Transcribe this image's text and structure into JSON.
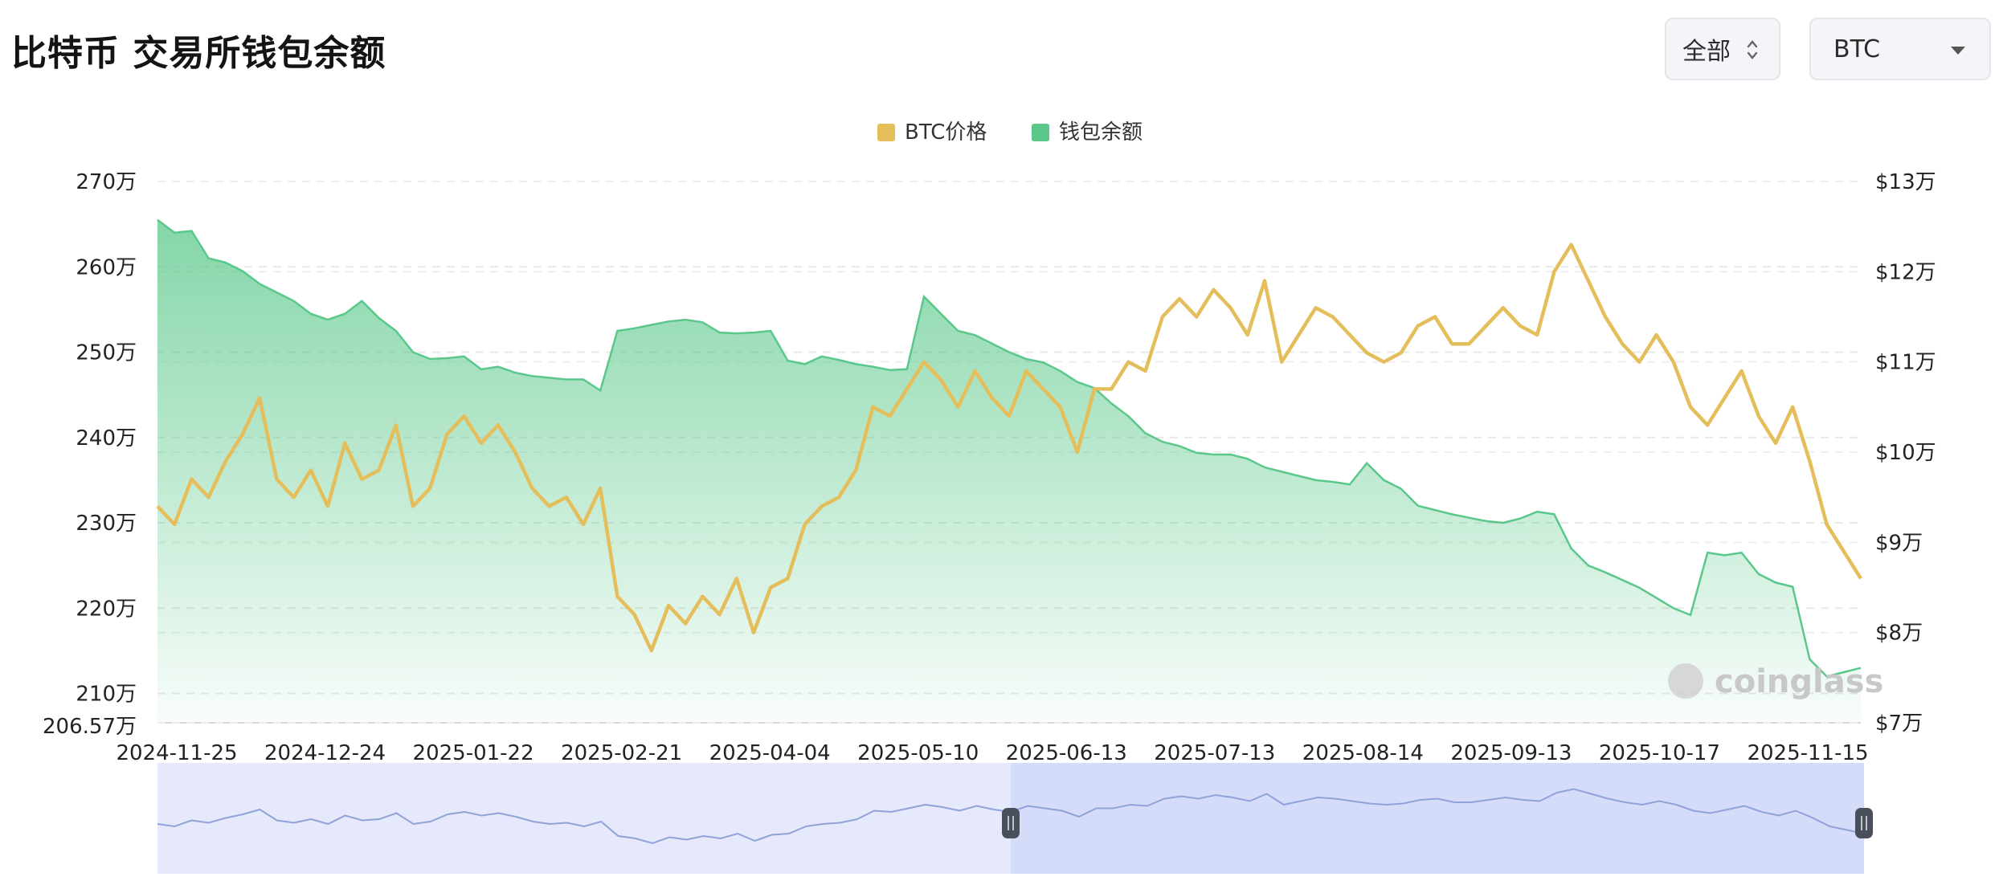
{
  "page": {
    "title": "比特币 交易所钱包余额",
    "range_select": {
      "value": "全部"
    },
    "coin_select": {
      "value": "BTC"
    },
    "watermark": "coinglass"
  },
  "colors": {
    "price": "#E5BE5C",
    "balance": "#5AC88A",
    "balance_fill_top": "#7ED3A0",
    "grid": "#e8e8e8",
    "navigator_fill": "#e6e9fb",
    "navigator_selected": "#d5dcfa",
    "navigator_line": "#8fa3d8",
    "handle": "#4a4f5c"
  },
  "chart_data": {
    "type": "area",
    "legend": [
      {
        "name": "BTC价格",
        "color": "#E5BE5C"
      },
      {
        "name": "钱包余额",
        "color": "#5AC88A"
      }
    ],
    "legend_position": "top-center",
    "grid": true,
    "x_ticks": [
      "2024-11-25",
      "2024-12-24",
      "2025-01-22",
      "2025-02-21",
      "2025-04-04",
      "2025-05-10",
      "2025-06-13",
      "2025-07-13",
      "2025-08-14",
      "2025-09-13",
      "2025-10-17",
      "2025-11-15"
    ],
    "left_axis": {
      "ticks": [
        "270万",
        "260万",
        "250万",
        "240万",
        "230万",
        "220万",
        "210万"
      ],
      "min_label": "206.57万",
      "ylim": [
        206.57,
        270
      ]
    },
    "right_axis": {
      "ticks": [
        "$13万",
        "$12万",
        "$11万",
        "$10万",
        "$9万",
        "$8万",
        "$7万"
      ],
      "ylim": [
        7,
        13
      ]
    },
    "series": [
      {
        "name": "钱包余额",
        "axis": "left",
        "unit": "万",
        "x": [
          0,
          0.01,
          0.02,
          0.03,
          0.04,
          0.05,
          0.06,
          0.07,
          0.08,
          0.09,
          0.1,
          0.11,
          0.12,
          0.13,
          0.14,
          0.15,
          0.16,
          0.17,
          0.18,
          0.19,
          0.2,
          0.21,
          0.22,
          0.23,
          0.24,
          0.25,
          0.26,
          0.27,
          0.28,
          0.29,
          0.3,
          0.31,
          0.32,
          0.33,
          0.34,
          0.35,
          0.36,
          0.37,
          0.38,
          0.39,
          0.4,
          0.41,
          0.42,
          0.43,
          0.44,
          0.45,
          0.46,
          0.47,
          0.48,
          0.49,
          0.5,
          0.51,
          0.52,
          0.53,
          0.54,
          0.55,
          0.56,
          0.57,
          0.58,
          0.59,
          0.6,
          0.61,
          0.62,
          0.63,
          0.64,
          0.65,
          0.66,
          0.67,
          0.68,
          0.69,
          0.7,
          0.71,
          0.72,
          0.73,
          0.74,
          0.75,
          0.76,
          0.77,
          0.78,
          0.79,
          0.8,
          0.81,
          0.82,
          0.83,
          0.84,
          0.85,
          0.86,
          0.87,
          0.88,
          0.89,
          0.9,
          0.91,
          0.92,
          0.93,
          0.94,
          0.95,
          0.96,
          0.97,
          0.98,
          0.99,
          1
        ],
        "values": [
          265.5,
          264,
          264.2,
          261,
          260.5,
          259.5,
          258,
          257,
          256,
          254.5,
          253.8,
          254.5,
          256,
          254,
          252.5,
          250,
          249.2,
          249.3,
          249.5,
          248,
          248.3,
          247.6,
          247.2,
          247,
          246.8,
          246.8,
          245.5,
          252.5,
          252.8,
          253.2,
          253.6,
          253.8,
          253.5,
          252.3,
          252.2,
          252.3,
          252.5,
          249,
          248.6,
          249.5,
          249.1,
          248.6,
          248.3,
          247.9,
          248,
          256.5,
          254.5,
          252.5,
          252,
          251,
          250,
          249.2,
          248.8,
          247.8,
          246.5,
          245.8,
          244,
          242.5,
          240.5,
          239.5,
          239,
          238.2,
          238,
          238,
          237.5,
          236.5,
          236,
          235.5,
          235,
          234.8,
          234.5,
          237,
          235,
          234,
          232,
          231.5,
          231,
          230.6,
          230.2,
          230,
          230.5,
          231.3,
          231,
          227,
          225,
          224.2,
          223.3,
          222.4,
          221.2,
          220,
          219.2,
          226.5,
          226.2,
          226.5,
          224,
          223,
          222.5,
          214,
          212,
          212.5,
          213
        ],
        "note": "x is the fraction of the time span 2024-11-25 → 2025-11-22"
      },
      {
        "name": "BTC价格",
        "axis": "right",
        "unit": "万 USD",
        "x": [
          0,
          0.01,
          0.02,
          0.03,
          0.04,
          0.05,
          0.06,
          0.07,
          0.08,
          0.09,
          0.1,
          0.11,
          0.12,
          0.13,
          0.14,
          0.15,
          0.16,
          0.17,
          0.18,
          0.19,
          0.2,
          0.21,
          0.22,
          0.23,
          0.24,
          0.25,
          0.26,
          0.27,
          0.28,
          0.29,
          0.3,
          0.31,
          0.32,
          0.33,
          0.34,
          0.35,
          0.36,
          0.37,
          0.38,
          0.39,
          0.4,
          0.41,
          0.42,
          0.43,
          0.44,
          0.45,
          0.46,
          0.47,
          0.48,
          0.49,
          0.5,
          0.51,
          0.52,
          0.53,
          0.54,
          0.55,
          0.56,
          0.57,
          0.58,
          0.59,
          0.6,
          0.61,
          0.62,
          0.63,
          0.64,
          0.65,
          0.66,
          0.67,
          0.68,
          0.69,
          0.7,
          0.71,
          0.72,
          0.73,
          0.74,
          0.75,
          0.76,
          0.77,
          0.78,
          0.79,
          0.8,
          0.81,
          0.82,
          0.83,
          0.84,
          0.85,
          0.86,
          0.87,
          0.88,
          0.89,
          0.9,
          0.91,
          0.92,
          0.93,
          0.94,
          0.95,
          0.96,
          0.97,
          0.98,
          0.99,
          1
        ],
        "values": [
          9.4,
          9.2,
          9.7,
          9.5,
          9.9,
          10.2,
          10.6,
          9.7,
          9.5,
          9.8,
          9.4,
          10.1,
          9.7,
          9.8,
          10.3,
          9.4,
          9.6,
          10.2,
          10.4,
          10.1,
          10.3,
          10.0,
          9.6,
          9.4,
          9.5,
          9.2,
          9.6,
          8.4,
          8.2,
          7.8,
          8.3,
          8.1,
          8.4,
          8.2,
          8.6,
          8.0,
          8.5,
          8.6,
          9.2,
          9.4,
          9.5,
          9.8,
          10.5,
          10.4,
          10.7,
          11.0,
          10.8,
          10.5,
          10.9,
          10.6,
          10.4,
          10.9,
          10.7,
          10.5,
          10.0,
          10.7,
          10.7,
          11.0,
          10.9,
          11.5,
          11.7,
          11.5,
          11.8,
          11.6,
          11.3,
          11.9,
          11.0,
          11.3,
          11.6,
          11.5,
          11.3,
          11.1,
          11.0,
          11.1,
          11.4,
          11.5,
          11.2,
          11.2,
          11.4,
          11.6,
          11.4,
          11.3,
          12.0,
          12.3,
          11.9,
          11.5,
          11.2,
          11.0,
          11.3,
          11.0,
          10.5,
          10.3,
          10.6,
          10.9,
          10.4,
          10.1,
          10.5,
          9.9,
          9.2,
          8.9,
          8.6
        ],
        "note": "x is the fraction of the time span 2024-11-25 → 2025-11-22"
      }
    ],
    "navigator": {
      "selected_range": [
        0.5,
        1.0
      ]
    }
  }
}
